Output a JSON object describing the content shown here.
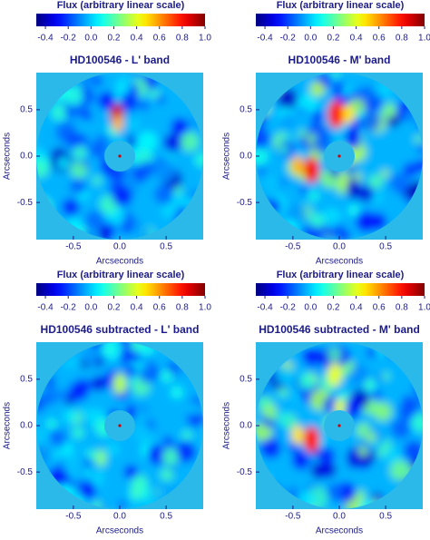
{
  "chart_data": [
    {
      "type": "image",
      "colormap": "jet",
      "colorbar_title": "Flux (arbitrary linear scale)",
      "clim": [
        -0.48,
        1.0
      ],
      "cticks": [
        -0.4,
        -0.2,
        {
          "value": 0,
          "label": "0.0"
        },
        0.2,
        0.4,
        0.6,
        0.8,
        {
          "value": 1,
          "label": "1.0"
        }
      ],
      "title": "HD100546 - L' band",
      "xlabel": "Arcseconds",
      "ylabel": "Arcseconds",
      "xlim": [
        -0.9,
        0.9
      ],
      "ylim": [
        -0.9,
        0.9
      ],
      "xticks": [
        -0.5,
        {
          "value": 0,
          "label": "0.0"
        },
        0.5
      ],
      "yticks": [
        -0.5,
        {
          "value": 0,
          "label": "0.0"
        },
        0.5
      ]
    },
    {
      "type": "image",
      "colormap": "jet",
      "colorbar_title": "Flux (arbitrary linear scale)",
      "clim": [
        -0.48,
        1.0
      ],
      "cticks": [
        -0.4,
        -0.2,
        {
          "value": 0,
          "label": "0.0"
        },
        0.2,
        0.4,
        0.6,
        0.8,
        {
          "value": 1,
          "label": "1.0"
        }
      ],
      "title": "HD100546 - M' band",
      "xlabel": "Arcseconds",
      "ylabel": "Arcseconds",
      "xlim": [
        -0.9,
        0.9
      ],
      "ylim": [
        -0.9,
        0.9
      ],
      "xticks": [
        -0.5,
        {
          "value": 0,
          "label": "0.0"
        },
        0.5
      ],
      "yticks": [
        -0.5,
        {
          "value": 0,
          "label": "0.0"
        },
        0.5
      ]
    },
    {
      "type": "image",
      "colormap": "jet",
      "colorbar_title": "Flux (arbitrary linear scale)",
      "clim": [
        -0.48,
        1.0
      ],
      "cticks": [
        -0.4,
        -0.2,
        {
          "value": 0,
          "label": "0.0"
        },
        0.2,
        0.4,
        0.6,
        0.8,
        {
          "value": 1,
          "label": "1.0"
        }
      ],
      "title": "HD100546 subtracted - L' band",
      "xlabel": "Arcseconds",
      "ylabel": "Arcseconds",
      "xlim": [
        -0.9,
        0.9
      ],
      "ylim": [
        -0.9,
        0.9
      ],
      "xticks": [
        -0.5,
        {
          "value": 0,
          "label": "0.0"
        },
        0.5
      ],
      "yticks": [
        -0.5,
        {
          "value": 0,
          "label": "0.0"
        },
        0.5
      ]
    },
    {
      "type": "image",
      "colormap": "jet",
      "colorbar_title": "Flux (arbitrary linear scale)",
      "clim": [
        -0.48,
        1.0
      ],
      "cticks": [
        -0.4,
        -0.2,
        {
          "value": 0,
          "label": "0.0"
        },
        0.2,
        0.4,
        0.6,
        0.8,
        {
          "value": 1,
          "label": "1.0"
        }
      ],
      "title": "HD100546 subtracted - M' band",
      "xlabel": "Arcseconds",
      "ylabel": "Arcseconds",
      "xlim": [
        -0.9,
        0.9
      ],
      "ylim": [
        -0.9,
        0.9
      ],
      "xticks": [
        -0.5,
        {
          "value": 0,
          "label": "0.0"
        },
        0.5
      ],
      "yticks": [
        -0.5,
        {
          "value": 0,
          "label": "0.0"
        },
        0.5
      ]
    }
  ]
}
